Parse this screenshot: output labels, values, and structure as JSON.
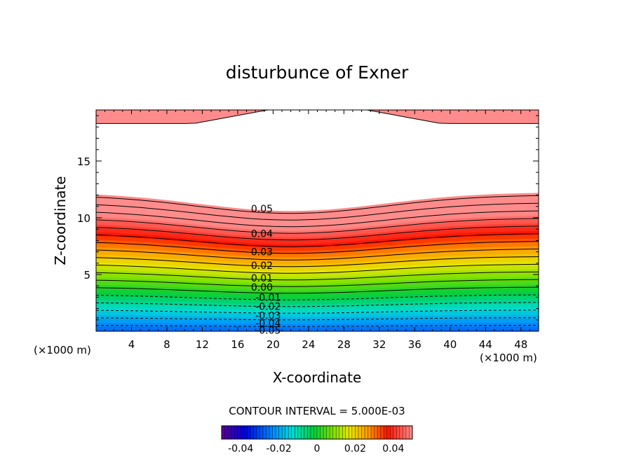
{
  "chart_data": {
    "type": "contour",
    "title": "disturbunce of Exner",
    "xlabel": "X-coordinate",
    "ylabel": "Z-coordinate",
    "x_unit_label_left": "(×1000 m)",
    "x_unit_label_right": "(×1000 m)",
    "xlim": [
      0,
      50
    ],
    "ylim": [
      0,
      19.5
    ],
    "x_ticks": [
      4,
      8,
      12,
      16,
      20,
      24,
      28,
      32,
      36,
      40,
      44,
      48
    ],
    "y_ticks": [
      5,
      10,
      15
    ],
    "contour_interval_text": "CONTOUR INTERVAL = 5.000E-03",
    "contour_labels": [
      {
        "text": "0.05",
        "x": 17.5,
        "z": 10.8
      },
      {
        "text": "0.04",
        "x": 17.5,
        "z": 8.6
      },
      {
        "text": "0.03",
        "x": 17.5,
        "z": 7.0
      },
      {
        "text": "0.02",
        "x": 17.5,
        "z": 5.8
      },
      {
        "text": "0.01",
        "x": 17.5,
        "z": 4.7
      },
      {
        "text": "0.00",
        "x": 17.5,
        "z": 3.9
      },
      {
        "text": "-0.01",
        "x": 18.0,
        "z": 3.0
      },
      {
        "text": "-0.02",
        "x": 18.0,
        "z": 2.2
      },
      {
        "text": "-0.03",
        "x": 18.0,
        "z": 1.4
      },
      {
        "text": "-0.04",
        "x": 18.0,
        "z": 0.7
      },
      {
        "text": "-0.05",
        "x": 18.0,
        "z": 0.1
      }
    ],
    "colorbar": {
      "range": [
        -0.05,
        0.05
      ],
      "tick_labels": [
        "-0.04",
        "-0.02",
        "0",
        "0.02",
        "0.04"
      ],
      "tick_values": [
        -0.04,
        -0.02,
        0,
        0.02,
        0.04
      ]
    }
  }
}
